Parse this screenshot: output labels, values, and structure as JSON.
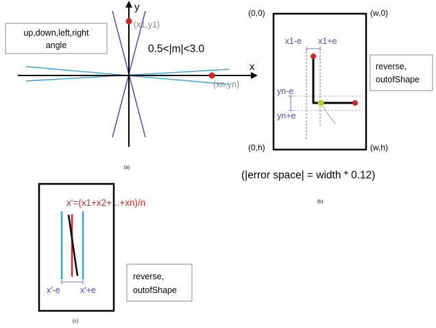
{
  "panel_a": {
    "caption": "(a)",
    "box_line1": "up,down,left,right",
    "box_line2": "angle",
    "slope_condition": "0.5<|m|<3.0",
    "axis_x": "x",
    "axis_y": "y",
    "point_first": "(x1,y1)",
    "point_last": "(xn,yn)"
  },
  "panel_b": {
    "caption": "(b)",
    "corner_top_left": "(0,0)",
    "corner_top_right": "(w,0)",
    "corner_bottom_left": "(0,h)",
    "corner_bottom_right": "(w,h)",
    "x_minus_e": "x1-e",
    "x_plus_e": "x1+e",
    "y_minus_e": "yn-e",
    "y_plus_e": "yn+e",
    "box_line1": "reverse,",
    "box_line2": "outofShape",
    "error_space": "(|error space| = width * 0.12)"
  },
  "panel_c": {
    "caption": "(c)",
    "formula": "x'=(x1+x2+...+xn)/n",
    "x_minus_e": "x'-e",
    "x_plus_e": "x'+e",
    "box_line1": "reverse,",
    "box_line2": "outofShape"
  },
  "colors": {
    "dark_blue": "#3b3bb8",
    "light_blue": "#2aa6dc",
    "red": "#e02020",
    "label_blue": "#4a4ad0",
    "gray": "#888888",
    "green_dot": "#a8d820"
  }
}
